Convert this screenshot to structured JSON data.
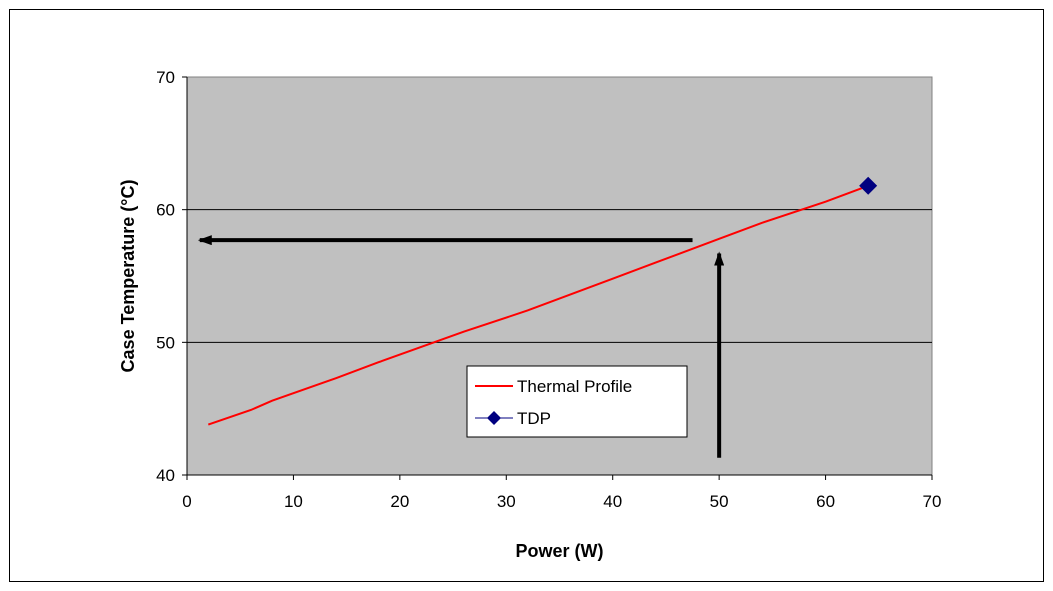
{
  "chart_data": {
    "type": "line",
    "xlabel": "Power (W)",
    "ylabel": "Case Temperature  (°C)",
    "xlim": [
      0,
      70
    ],
    "ylim": [
      40,
      70
    ],
    "xticks": [
      0,
      10,
      20,
      30,
      40,
      50,
      60,
      70
    ],
    "yticks": [
      40,
      50,
      60,
      70
    ],
    "grid": "horizontal",
    "legend_position": "inside-bottom-center",
    "plot_background": "#c0c0c0",
    "series": [
      {
        "name": "Thermal Profile",
        "color": "#ff0000",
        "x": [
          2,
          6,
          8,
          14,
          18,
          26,
          32,
          36,
          40,
          44,
          50,
          54,
          60,
          64
        ],
        "y": [
          43.8,
          44.9,
          45.6,
          47.3,
          48.5,
          50.8,
          52.4,
          53.6,
          54.8,
          56.0,
          57.8,
          59.0,
          60.6,
          61.8
        ]
      },
      {
        "name": "TDP",
        "color": "#000080",
        "marker": "diamond",
        "x": [
          64
        ],
        "y": [
          61.8
        ]
      }
    ],
    "annotations": [
      {
        "type": "arrow",
        "from": [
          50,
          41.3
        ],
        "to": [
          50,
          56.7
        ],
        "color": "#000000"
      },
      {
        "type": "arrow",
        "from": [
          47.5,
          57.7
        ],
        "to": [
          1.2,
          57.7
        ],
        "color": "#000000"
      }
    ]
  }
}
